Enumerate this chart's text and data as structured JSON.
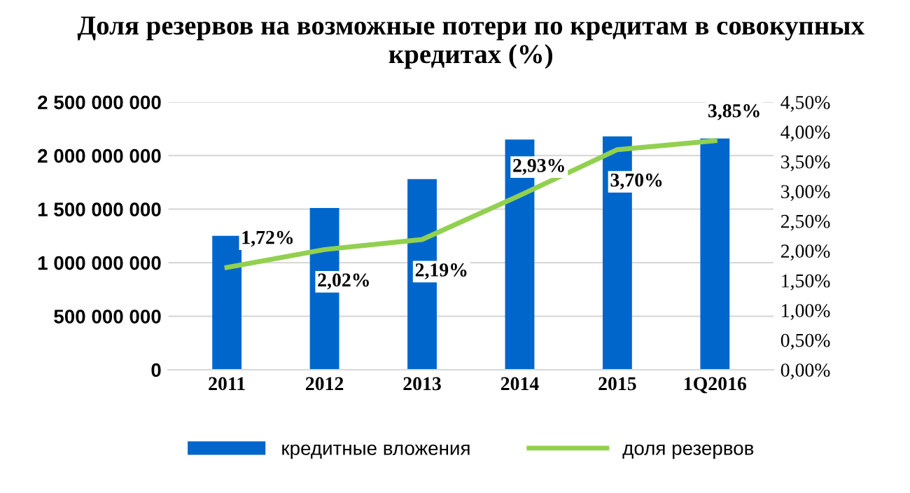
{
  "chart_data": {
    "type": "bar",
    "title": "Доля резервов на возможные потери по кредитам в совокупных кредитах (%)",
    "categories": [
      "2011",
      "2012",
      "2013",
      "2014",
      "2015",
      "1Q2016"
    ],
    "series": [
      {
        "name": "кредитные вложения",
        "color": "#0066cc",
        "values": [
          1250000000,
          1510000000,
          1780000000,
          2150000000,
          2180000000,
          2160000000
        ]
      },
      {
        "name": "доля резервов",
        "color": "#92d050",
        "type": "line",
        "axis": "y2",
        "values": [
          1.72,
          2.02,
          2.19,
          2.93,
          3.7,
          3.85
        ],
        "value_labels": [
          "1,72%",
          "2,02%",
          "2,19%",
          "2,93%",
          "3,70%",
          "3,85%"
        ]
      }
    ],
    "ylim": [
      0,
      2500000000
    ],
    "yticks": [
      0,
      {
        "value": 500000000,
        "label": "500 000 000"
      },
      {
        "value": 1000000000,
        "label": "1 000 000 000"
      },
      {
        "value": 1500000000,
        "label": "1 500 000 000"
      },
      {
        "value": 2000000000,
        "label": "2 000 000 000"
      },
      {
        "value": 2500000000,
        "label": "2 500 000 000"
      }
    ],
    "y2lim": [
      0,
      4.5
    ],
    "y2ticks": [
      {
        "value": 0,
        "label": "0,00%"
      },
      {
        "value": 0.5,
        "label": "0,50%"
      },
      {
        "value": 1,
        "label": "1,00%"
      },
      {
        "value": 1.5,
        "label": "1,50%"
      },
      {
        "value": 2,
        "label": "2,00%"
      },
      {
        "value": 2.5,
        "label": "2,50%"
      },
      {
        "value": 3,
        "label": "3,00%"
      },
      {
        "value": 3.5,
        "label": "3,50%"
      },
      {
        "value": 4,
        "label": "4,00%"
      },
      {
        "value": 4.5,
        "label": "4,50%"
      }
    ],
    "grid": "y",
    "legend": "bottom",
    "marker": "none",
    "line_style": "solid"
  }
}
